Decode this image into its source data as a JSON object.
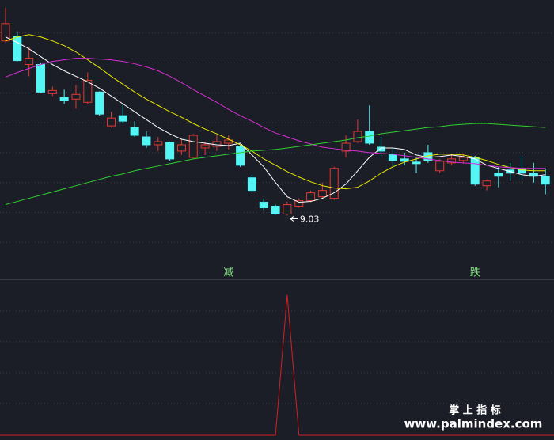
{
  "chart_data": [
    {
      "type": "candlestick",
      "open": [
        11.25,
        11.31,
        10.95,
        10.95,
        10.58,
        10.53,
        10.51,
        10.47,
        10.6,
        10.17,
        10.3,
        10.15,
        10.03,
        9.93,
        9.96,
        9.85,
        9.77,
        9.89,
        9.91,
        9.95,
        9.91,
        9.51,
        9.2,
        9.15,
        9.05,
        9.15,
        9.22,
        9.27,
        9.25,
        9.85,
        9.97,
        10.1,
        9.9,
        9.81,
        9.75,
        9.71,
        9.83,
        9.6,
        9.7,
        9.73,
        9.77,
        9.41,
        9.57,
        9.61,
        9.63,
        9.57,
        9.53
      ],
      "high": [
        11.67,
        11.37,
        11.17,
        10.97,
        10.67,
        10.63,
        10.69,
        10.85,
        10.61,
        10.35,
        10.45,
        10.23,
        10.1,
        10.03,
        9.97,
        10.0,
        10.07,
        9.97,
        10.05,
        10.05,
        9.93,
        9.55,
        9.25,
        9.17,
        9.21,
        9.25,
        9.35,
        9.45,
        9.65,
        10.05,
        10.25,
        10.43,
        10.03,
        9.89,
        9.83,
        9.77,
        9.93,
        9.75,
        9.8,
        9.81,
        9.79,
        9.49,
        9.65,
        9.7,
        9.79,
        9.7,
        9.63
      ],
      "low": [
        11.23,
        10.99,
        10.8,
        10.59,
        10.55,
        10.45,
        10.39,
        10.45,
        10.3,
        10.15,
        10.2,
        10.03,
        9.89,
        9.85,
        9.73,
        9.8,
        9.75,
        9.8,
        9.85,
        9.87,
        9.65,
        9.33,
        9.1,
        9.04,
        9.03,
        9.13,
        9.2,
        9.25,
        9.23,
        9.77,
        9.95,
        9.93,
        9.77,
        9.65,
        9.67,
        9.57,
        9.7,
        9.57,
        9.67,
        9.69,
        9.41,
        9.35,
        9.39,
        9.47,
        9.49,
        9.45,
        9.3
      ],
      "close": [
        11.47,
        11.0,
        11.03,
        10.6,
        10.62,
        10.49,
        10.57,
        10.75,
        10.32,
        10.27,
        10.23,
        10.05,
        9.93,
        9.97,
        9.75,
        9.93,
        10.05,
        9.93,
        9.97,
        9.99,
        9.67,
        9.35,
        9.13,
        9.05,
        9.17,
        9.22,
        9.32,
        9.35,
        9.63,
        9.95,
        10.1,
        9.95,
        9.85,
        9.73,
        9.72,
        9.69,
        9.73,
        9.72,
        9.75,
        9.77,
        9.43,
        9.47,
        9.53,
        9.57,
        9.57,
        9.53,
        9.43
      ],
      "up_color": "#e0392f",
      "down_color": "#54f5f5",
      "series": [
        {
          "color": "#ffffff",
          "values": [
            11.3,
            11.23,
            11.15,
            11.05,
            10.95,
            10.87,
            10.8,
            10.73,
            10.65,
            10.55,
            10.45,
            10.35,
            10.25,
            10.15,
            10.07,
            10.0,
            9.97,
            9.95,
            9.93,
            9.92,
            9.95,
            9.8,
            9.65,
            9.45,
            9.27,
            9.2,
            9.21,
            9.25,
            9.32,
            9.43,
            9.6,
            9.77,
            9.89,
            9.89,
            9.87,
            9.8,
            9.77,
            9.78,
            9.8,
            9.78,
            9.75,
            9.67,
            9.63,
            9.59,
            9.55,
            9.53,
            9.55
          ]
        },
        {
          "color": "#e6e600",
          "values": [
            11.25,
            11.3,
            11.33,
            11.3,
            11.25,
            11.19,
            11.11,
            11.01,
            10.91,
            10.8,
            10.7,
            10.6,
            10.51,
            10.43,
            10.35,
            10.28,
            10.2,
            10.13,
            10.07,
            10.0,
            9.93,
            9.85,
            9.75,
            9.67,
            9.59,
            9.52,
            9.46,
            9.41,
            9.38,
            9.37,
            9.39,
            9.47,
            9.57,
            9.65,
            9.71,
            9.75,
            9.79,
            9.81,
            9.81,
            9.8,
            9.77,
            9.73,
            9.68,
            9.64,
            9.61,
            9.6,
            9.6
          ]
        },
        {
          "color": "#d42fd4",
          "values": [
            10.79,
            10.85,
            10.9,
            10.95,
            10.99,
            11.01,
            11.03,
            11.03,
            11.02,
            11.01,
            10.99,
            10.96,
            10.92,
            10.87,
            10.8,
            10.72,
            10.63,
            10.55,
            10.47,
            10.38,
            10.3,
            10.23,
            10.15,
            10.08,
            10.03,
            9.98,
            9.94,
            9.9,
            9.88,
            9.86,
            9.85,
            9.83,
            9.82,
            9.81,
            9.79,
            9.77,
            9.75,
            9.73,
            9.71,
            9.7,
            9.69,
            9.67,
            9.65,
            9.64,
            9.63,
            9.63,
            9.63
          ]
        },
        {
          "color": "#2fcf2f",
          "values": [
            9.17,
            9.21,
            9.25,
            9.29,
            9.33,
            9.37,
            9.41,
            9.45,
            9.49,
            9.53,
            9.56,
            9.6,
            9.63,
            9.66,
            9.69,
            9.72,
            9.75,
            9.77,
            9.79,
            9.81,
            9.83,
            9.85,
            9.86,
            9.87,
            9.89,
            9.91,
            9.93,
            9.95,
            9.97,
            9.99,
            10.02,
            10.04,
            10.07,
            10.09,
            10.11,
            10.13,
            10.15,
            10.16,
            10.18,
            10.19,
            10.2,
            10.2,
            10.19,
            10.18,
            10.17,
            10.16,
            10.15
          ]
        }
      ],
      "ylim": [
        8.23,
        11.75
      ],
      "grid_values": [
        11.35,
        10.97,
        10.59,
        10.21,
        9.83,
        9.45,
        9.07,
        8.69
      ],
      "annotations": [
        {
          "text": "9.03"
        }
      ],
      "signal_color": "#7de07d",
      "signal_labels": [
        null,
        null,
        null,
        null,
        null,
        null,
        null,
        null,
        null,
        null,
        null,
        null,
        null,
        null,
        null,
        null,
        null,
        null,
        null,
        "减",
        null,
        null,
        null,
        null,
        null,
        null,
        null,
        null,
        null,
        null,
        null,
        null,
        null,
        null,
        null,
        null,
        null,
        null,
        null,
        null,
        "跌",
        null,
        null,
        null,
        null,
        null,
        null
      ]
    },
    {
      "type": "line",
      "series": [
        {
          "color": "#d42020",
          "values": [
            0,
            0,
            0,
            0,
            0,
            0,
            0,
            0,
            0,
            0,
            0,
            0,
            0,
            0,
            0,
            0,
            0,
            0,
            0,
            0,
            0,
            0,
            0,
            0,
            1,
            0,
            0,
            0,
            0,
            0,
            0,
            0,
            0,
            0,
            0,
            0,
            0,
            0,
            0,
            0,
            0,
            0,
            0,
            0,
            0,
            0,
            0
          ]
        }
      ],
      "ylim": [
        0,
        1.1
      ],
      "grid_values": [
        0.886,
        0.666,
        0.446,
        0.226
      ]
    }
  ],
  "watermark": {
    "title": "掌 上 指 标",
    "url": "www.palmindex.com"
  }
}
